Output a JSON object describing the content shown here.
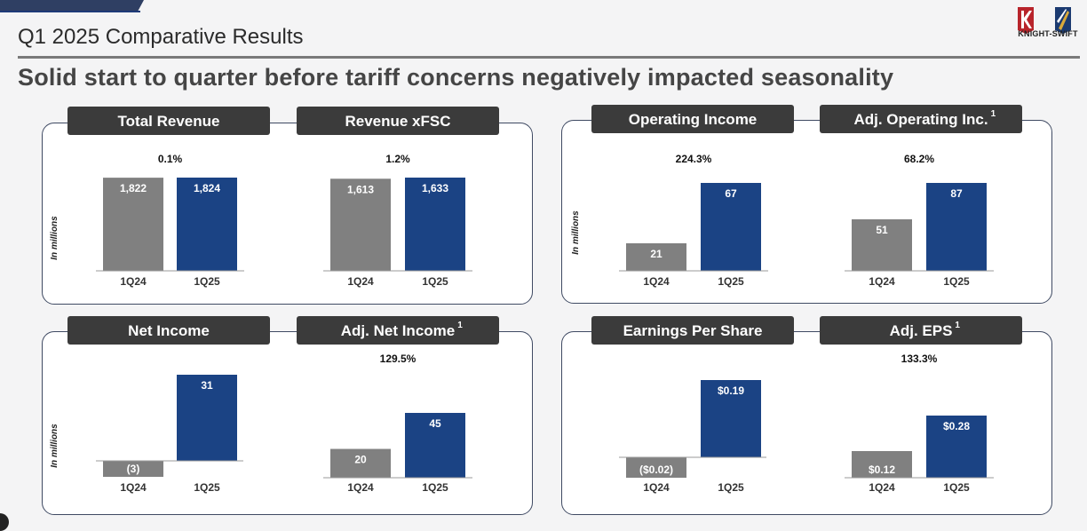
{
  "slide": {
    "title": "Q1 2025 Comparative Results",
    "subtitle": "Solid start to quarter before tariff concerns negatively impacted seasonality"
  },
  "logo": {
    "text": "KNIGHT-SWIFT",
    "icon": "knight-swift-shield-logo"
  },
  "colors": {
    "prior": "#808080",
    "current": "#1b4384",
    "pill": "#3b3b3b",
    "border": "#3f4a63"
  },
  "chart_data": [
    {
      "id": "total-revenue",
      "type": "bar",
      "title": "Total Revenue",
      "sup": "",
      "ylabel": "In millions",
      "change": "0.1%",
      "categories": [
        "1Q24",
        "1Q25"
      ],
      "values": [
        1822,
        1824
      ],
      "labels": [
        "1,822",
        "1,824"
      ],
      "ylim": [
        0,
        2000
      ]
    },
    {
      "id": "revenue-xfsc",
      "type": "bar",
      "title": "Revenue xFSC",
      "sup": "",
      "ylabel": "",
      "change": "1.2%",
      "categories": [
        "1Q24",
        "1Q25"
      ],
      "values": [
        1613,
        1633
      ],
      "labels": [
        "1,613",
        "1,633"
      ],
      "ylim": [
        0,
        2000
      ]
    },
    {
      "id": "operating-income",
      "type": "bar",
      "title": "Operating Income",
      "sup": "",
      "ylabel": "In millions",
      "change": "224.3%",
      "categories": [
        "1Q24",
        "1Q25"
      ],
      "values": [
        21,
        67
      ],
      "labels": [
        "21",
        "67"
      ],
      "ylim": [
        0,
        87
      ]
    },
    {
      "id": "adj-operating-income",
      "type": "bar",
      "title": "Adj. Operating Inc.",
      "sup": "1",
      "ylabel": "",
      "change": "68.2%",
      "categories": [
        "1Q24",
        "1Q25"
      ],
      "values": [
        51,
        87
      ],
      "labels": [
        "51",
        "87"
      ],
      "ylim": [
        0,
        87
      ]
    },
    {
      "id": "net-income",
      "type": "bar",
      "title": "Net Income",
      "sup": "",
      "ylabel": "In millions",
      "change": "",
      "categories": [
        "1Q24",
        "1Q25"
      ],
      "values": [
        -3,
        31
      ],
      "labels": [
        "(3)",
        "31"
      ],
      "ylim": [
        -3,
        31
      ]
    },
    {
      "id": "adj-net-income",
      "type": "bar",
      "title": "Adj. Net Income",
      "sup": "1",
      "ylabel": "",
      "change": "129.5%",
      "categories": [
        "1Q24",
        "1Q25"
      ],
      "values": [
        20,
        45
      ],
      "labels": [
        "20",
        "45"
      ],
      "ylim": [
        0,
        45
      ]
    },
    {
      "id": "eps",
      "type": "bar",
      "title": "Earnings Per Share",
      "sup": "",
      "ylabel": "",
      "change": "",
      "categories": [
        "1Q24",
        "1Q25"
      ],
      "values": [
        -0.02,
        0.19
      ],
      "labels": [
        "($0.02)",
        "$0.19"
      ],
      "ylim": [
        -0.02,
        0.19
      ]
    },
    {
      "id": "adj-eps",
      "type": "bar",
      "title": "Adj. EPS",
      "sup": "1",
      "ylabel": "",
      "change": "133.3%",
      "categories": [
        "1Q24",
        "1Q25"
      ],
      "values": [
        0.12,
        0.28
      ],
      "labels": [
        "$0.12",
        "$0.28"
      ],
      "ylim": [
        0,
        0.28
      ]
    }
  ]
}
